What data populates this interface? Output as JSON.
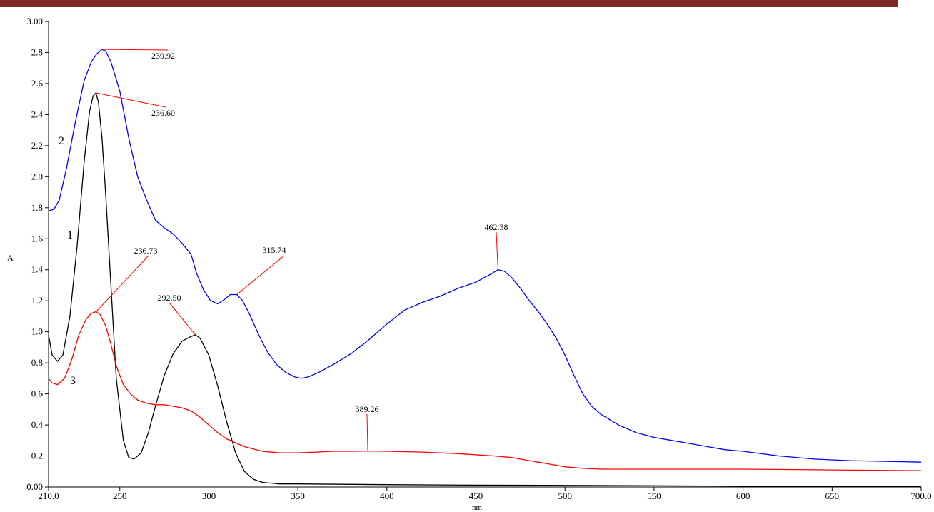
{
  "chart_data": {
    "type": "line",
    "xlabel": "nm",
    "ylabel": "A",
    "xlim": [
      210,
      700
    ],
    "ylim": [
      0,
      3
    ],
    "x_ticks": [
      {
        "value": 210,
        "label": "210.0"
      },
      {
        "value": 250,
        "label": "250"
      },
      {
        "value": 300,
        "label": "300"
      },
      {
        "value": 350,
        "label": "350"
      },
      {
        "value": 400,
        "label": "400"
      },
      {
        "value": 450,
        "label": "450"
      },
      {
        "value": 500,
        "label": "500"
      },
      {
        "value": 550,
        "label": "550"
      },
      {
        "value": 600,
        "label": "600"
      },
      {
        "value": 650,
        "label": "650"
      },
      {
        "value": 700,
        "label": "700.0"
      }
    ],
    "y_ticks": [
      {
        "value": 0,
        "label": "0.00"
      },
      {
        "value": 0.2,
        "label": "0.2"
      },
      {
        "value": 0.4,
        "label": "0.4"
      },
      {
        "value": 0.6,
        "label": "0.6"
      },
      {
        "value": 0.8,
        "label": "0.8"
      },
      {
        "value": 1.0,
        "label": "1.0"
      },
      {
        "value": 1.2,
        "label": "1.2"
      },
      {
        "value": 1.4,
        "label": "1.4"
      },
      {
        "value": 1.6,
        "label": "1.6"
      },
      {
        "value": 1.8,
        "label": "1.8"
      },
      {
        "value": 2.0,
        "label": "2.0"
      },
      {
        "value": 2.2,
        "label": "2.2"
      },
      {
        "value": 2.4,
        "label": "2.4"
      },
      {
        "value": 2.6,
        "label": "2.6"
      },
      {
        "value": 2.8,
        "label": "2.8"
      },
      {
        "value": 3.0,
        "label": "3.00"
      }
    ],
    "grid": false,
    "legend": "none",
    "series": [
      {
        "label": "1",
        "color": "#000000",
        "x": [
          210,
          212,
          215,
          218,
          222,
          226,
          230,
          233,
          235,
          236.6,
          238,
          240,
          242,
          245,
          248,
          252,
          255,
          258,
          262,
          266,
          270,
          275,
          280,
          285,
          290,
          292.5,
          295,
          300,
          305,
          310,
          315,
          320,
          325,
          330,
          335,
          340,
          350,
          400,
          450,
          500,
          550,
          600,
          650,
          700
        ],
        "y": [
          0.98,
          0.85,
          0.81,
          0.85,
          1.1,
          1.55,
          2.1,
          2.42,
          2.52,
          2.54,
          2.48,
          2.25,
          1.9,
          1.3,
          0.7,
          0.3,
          0.19,
          0.18,
          0.22,
          0.35,
          0.52,
          0.72,
          0.86,
          0.94,
          0.97,
          0.98,
          0.96,
          0.85,
          0.65,
          0.42,
          0.22,
          0.1,
          0.05,
          0.03,
          0.025,
          0.02,
          0.02,
          0.015,
          0.012,
          0.01,
          0.008,
          0.005,
          0.004,
          0.003
        ]
      },
      {
        "label": "2",
        "color": "#0000ff",
        "x": [
          210,
          213,
          216,
          220,
          225,
          230,
          234,
          237,
          239.92,
          242,
          245,
          250,
          255,
          260,
          265,
          270,
          275,
          280,
          285,
          290,
          293,
          297,
          301,
          305,
          309,
          312,
          315.74,
          319,
          323,
          328,
          333,
          338,
          343,
          348,
          352,
          356,
          362,
          370,
          380,
          390,
          400,
          410,
          420,
          430,
          440,
          450,
          458,
          462.38,
          466,
          470,
          475,
          480,
          485,
          490,
          495,
          500,
          505,
          510,
          515,
          520,
          530,
          540,
          550,
          560,
          570,
          580,
          590,
          600,
          620,
          640,
          660,
          680,
          700
        ],
        "y": [
          1.78,
          1.79,
          1.85,
          2.05,
          2.35,
          2.62,
          2.74,
          2.79,
          2.82,
          2.81,
          2.74,
          2.55,
          2.25,
          2.0,
          1.85,
          1.72,
          1.67,
          1.63,
          1.57,
          1.5,
          1.38,
          1.27,
          1.2,
          1.18,
          1.21,
          1.24,
          1.24,
          1.2,
          1.11,
          0.98,
          0.87,
          0.79,
          0.74,
          0.71,
          0.7,
          0.71,
          0.74,
          0.79,
          0.86,
          0.95,
          1.05,
          1.14,
          1.19,
          1.23,
          1.28,
          1.32,
          1.37,
          1.4,
          1.39,
          1.35,
          1.28,
          1.2,
          1.13,
          1.05,
          0.96,
          0.85,
          0.72,
          0.6,
          0.52,
          0.47,
          0.4,
          0.35,
          0.32,
          0.3,
          0.28,
          0.26,
          0.24,
          0.23,
          0.2,
          0.18,
          0.17,
          0.165,
          0.16
        ]
      },
      {
        "label": "3",
        "color": "#ff0000",
        "x": [
          210,
          212,
          215,
          219,
          223,
          227,
          231,
          234,
          236.73,
          239,
          242,
          245,
          248,
          252,
          256,
          260,
          265,
          270,
          275,
          280,
          285,
          290,
          295,
          300,
          305,
          310,
          320,
          330,
          340,
          350,
          360,
          370,
          380,
          389.26,
          400,
          420,
          440,
          460,
          470,
          480,
          490,
          500,
          510,
          520,
          550,
          600,
          650,
          700
        ],
        "y": [
          0.7,
          0.67,
          0.66,
          0.7,
          0.82,
          0.98,
          1.08,
          1.12,
          1.13,
          1.11,
          1.04,
          0.92,
          0.78,
          0.66,
          0.6,
          0.56,
          0.54,
          0.53,
          0.53,
          0.52,
          0.51,
          0.49,
          0.45,
          0.4,
          0.35,
          0.31,
          0.26,
          0.23,
          0.22,
          0.22,
          0.225,
          0.23,
          0.23,
          0.232,
          0.23,
          0.225,
          0.215,
          0.2,
          0.19,
          0.17,
          0.15,
          0.13,
          0.12,
          0.115,
          0.115,
          0.115,
          0.11,
          0.105
        ]
      }
    ],
    "annotations": [
      {
        "text": "239.92",
        "x": 239.92,
        "y": 2.82,
        "series": "2"
      },
      {
        "text": "236.60",
        "x": 236.6,
        "y": 2.54,
        "series": "1"
      },
      {
        "text": "315.74",
        "x": 315.74,
        "y": 1.24,
        "series": "2"
      },
      {
        "text": "462.38",
        "x": 462.38,
        "y": 1.4,
        "series": "2"
      },
      {
        "text": "236.73",
        "x": 236.73,
        "y": 1.13,
        "series": "3"
      },
      {
        "text": "292.50",
        "x": 292.5,
        "y": 0.98,
        "series": "1"
      },
      {
        "text": "389.26",
        "x": 389.26,
        "y": 0.232,
        "series": "3"
      }
    ],
    "leader_color": "#ff0000"
  }
}
